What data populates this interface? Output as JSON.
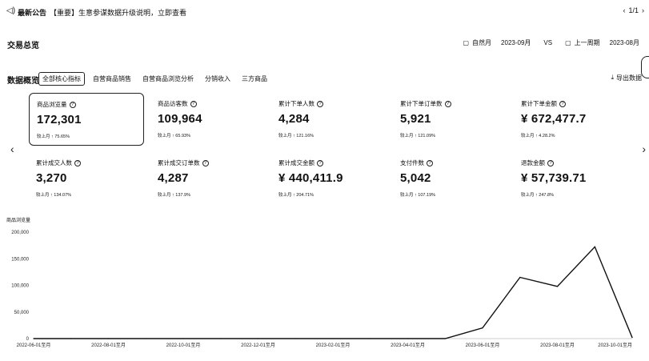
{
  "announcement": {
    "speaker_icon": "speaker-icon",
    "title": "最新公告",
    "text": "【重要】生意参谋数据升级说明，立即查看",
    "page": "1/1"
  },
  "section": {
    "title": "交易总览",
    "current_label": "自然月",
    "current_value": "2023-09月",
    "vs": "VS",
    "compare_label": "上一周期",
    "compare_value": "2023-08月"
  },
  "overview": {
    "title": "数据概览",
    "tabs": [
      {
        "label": "全部核心指标"
      },
      {
        "label": "自营商品销售"
      },
      {
        "label": "自营商品浏览分析"
      },
      {
        "label": "分销收入"
      },
      {
        "label": "三方商品"
      }
    ],
    "export_label": "导出数据"
  },
  "metrics": [
    {
      "label": "商品浏览量",
      "value": "172,301",
      "change": "较上月 ↑ 75.65%"
    },
    {
      "label": "商品访客数",
      "value": "109,964",
      "change": "较上月 ↑ 65.93%"
    },
    {
      "label": "累计下单人数",
      "value": "4,284",
      "change": "较上月 ↑ 121.16%"
    },
    {
      "label": "累计下单订单数",
      "value": "5,921",
      "change": "较上月 ↑ 121.09%"
    },
    {
      "label": "累计下单金额",
      "value": "¥ 672,477.7",
      "change": "较上月 ↑ 4.28.2%"
    },
    {
      "label": "累计成交人数",
      "value": "3,270",
      "change": "较上月 ↑ 134.07%"
    },
    {
      "label": "累计成交订单数",
      "value": "4,287",
      "change": "较上月 ↑ 137.9%"
    },
    {
      "label": "累计成交金额",
      "value": "¥ 440,411.9",
      "change": "较上月 ↑ 204.71%"
    },
    {
      "label": "支付件数",
      "value": "5,042",
      "change": "较上月 ↑ 107.19%"
    },
    {
      "label": "退款金额",
      "value": "¥ 57,739.71",
      "change": "较上月 ↑ 247.8%"
    }
  ],
  "chart": {
    "title": "商品浏览量",
    "yticks": [
      "200,000",
      "150,000",
      "100,000",
      "50,000",
      "0"
    ],
    "xticks": [
      "2022-06-01至月",
      "2022-08-01至月",
      "2022-10-01至月",
      "2022-12-01至月",
      "2023-02-01至月",
      "2023-04-01至月",
      "2023-06-01至月",
      "2023-08-01至月",
      "2023-10-01至月"
    ]
  },
  "chart_data": {
    "type": "line",
    "title": "商品浏览量",
    "x": [
      "2022-06",
      "2022-07",
      "2022-08",
      "2022-09",
      "2022-10",
      "2022-11",
      "2022-12",
      "2023-01",
      "2023-02",
      "2023-03",
      "2023-04",
      "2023-05",
      "2023-06",
      "2023-07",
      "2023-08",
      "2023-09",
      "2023-10"
    ],
    "series": [
      {
        "values": [
          0,
          0,
          0,
          0,
          0,
          0,
          0,
          0,
          0,
          0,
          0,
          0,
          20000,
          115000,
          98000,
          172301,
          2000
        ]
      }
    ],
    "ylim": [
      0,
      200000
    ],
    "grid": false
  }
}
